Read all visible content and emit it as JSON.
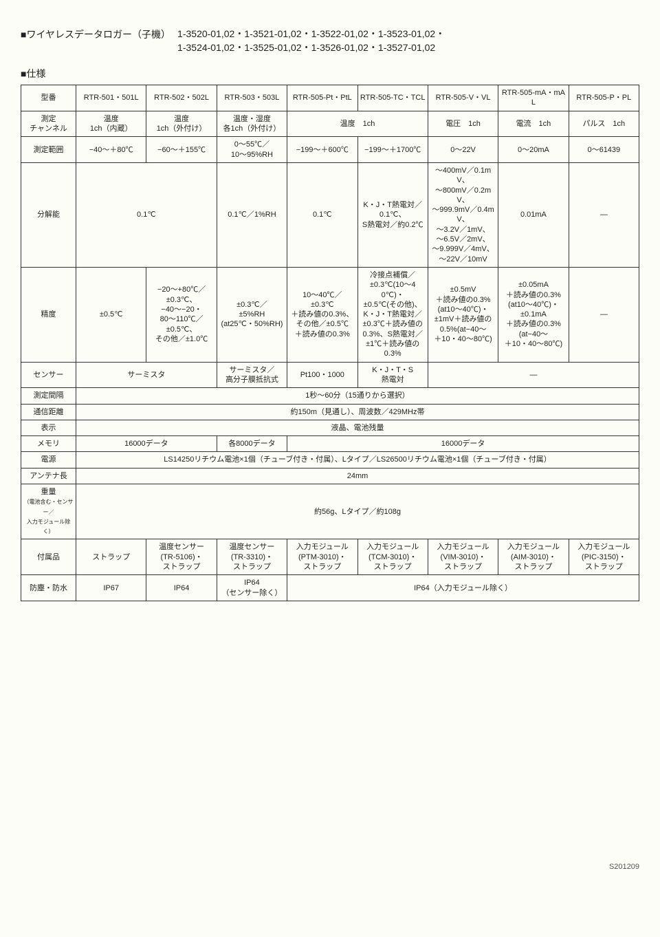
{
  "header": {
    "title": "■ワイヤレスデータロガー（子機）",
    "codes_line1": "1-3520-01,02・1-3521-01,02・1-3522-01,02・1-3523-01,02・",
    "codes_line2": "1-3524-01,02・1-3525-01,02・1-3526-01,02・1-3527-01,02"
  },
  "section_label": "■仕様",
  "columns": {
    "model": "型番",
    "c1": "RTR-501・501L",
    "c2": "RTR-502・502L",
    "c3": "RTR-503・503L",
    "c4": "RTR-505-Pt・PtL",
    "c5": "RTR-505-TC・TCL",
    "c6": "RTR-505-V・VL",
    "c7": "RTR-505-mA・mAL",
    "c8": "RTR-505-P・PL"
  },
  "rows": {
    "measure_channel": {
      "label": "測定\nチャンネル",
      "c1": "温度\n1ch（内蔵）",
      "c2": "温度\n1ch（外付け）",
      "c3": "温度・湿度\n各1ch（外付け）",
      "c45": "温度　1ch",
      "c6": "電圧　1ch",
      "c7": "電流　1ch",
      "c8": "パルス　1ch"
    },
    "range": {
      "label": "測定範囲",
      "c1": "−40～＋80℃",
      "c2": "−60～＋155℃",
      "c3": "0～55℃／\n10～95%RH",
      "c4": "−199～＋600℃",
      "c5": "−199～＋1700℃",
      "c6": "0～22V",
      "c7": "0～20mA",
      "c8": "0～61439"
    },
    "resolution": {
      "label": "分解能",
      "c12": "0.1℃",
      "c3": "0.1℃／1%RH",
      "c4": "0.1℃",
      "c5": "K・J・T熱電対／\n0.1℃、\nS熱電対／約0.2℃",
      "c6": "～400mV／0.1mV、\n～800mV／0.2mV、\n～999.9mV／0.4mV、\n～3.2V／1mV、\n～6.5V／2mV、\n～9.999V／4mV、\n～22V／10mV",
      "c7": "0.01mA",
      "c8": "—"
    },
    "accuracy": {
      "label": "精度",
      "c1": "±0.5℃",
      "c2": "−20～+80℃／\n±0.3℃、\n−40～−20・\n80～110℃／\n±0.5℃、\nその他／±1.0℃",
      "c3": "±0.3℃／\n±5%RH\n(at25℃・50%RH)",
      "c4": "10～40℃／\n±0.3℃\n＋読み値の0.3%、\nその他／±0.5℃\n＋読み値の0.3%",
      "c5": "冷接点補償／\n±0.3℃(10～40℃)・\n±0.5℃(その他)、\nK・J・T熱電対／\n±0.3℃＋読み値の\n0.3%、S熱電対／\n±1℃＋読み値の\n0.3%",
      "c6": "±0.5mV\n＋読み値の0.3%\n(at10～40℃)・\n±1mV＋読み値の\n0.5%(at−40～\n＋10・40～80℃)",
      "c7": "±0.05mA\n＋読み値の0.3%\n(at10～40℃)・\n±0.1mA\n＋読み値の0.3%\n(at−40～\n＋10・40～80℃)",
      "c8": "—"
    },
    "sensor": {
      "label": "センサー",
      "c12": "サーミスタ",
      "c3": "サーミスタ／\n高分子膜抵抗式",
      "c4": "Pt100・1000",
      "c5": "K・J・T・S\n熱電対",
      "c678": "—"
    },
    "interval": {
      "label": "測定間隔",
      "all": "1秒～60分（15通りから選択）"
    },
    "distance": {
      "label": "通信距離",
      "all": "約150m（見通し）、周波数／429MHz帯"
    },
    "display": {
      "label": "表示",
      "all": "液晶、電池残量"
    },
    "memory": {
      "label": "メモリ",
      "c12": "16000データ",
      "c3": "各8000データ",
      "c45678": "16000データ"
    },
    "power": {
      "label": "電源",
      "all": "LS14250リチウム電池×1個（チューブ付き・付属）、Lタイプ／LS26500リチウム電池×1個（チューブ付き・付属）"
    },
    "antenna": {
      "label": "アンテナ長",
      "all": "24mm"
    },
    "weight": {
      "label": "重量",
      "sublabel": "（電池含む・センサー／\n入力モジュール除く）",
      "all": "約56g、Lタイプ／約108g"
    },
    "accessories": {
      "label": "付属品",
      "c1": "ストラップ",
      "c2": "温度センサー\n(TR-5106)・\nストラップ",
      "c3": "温度センサー\n(TR-3310)・\nストラップ",
      "c4": "入力モジュール\n(PTM-3010)・\nストラップ",
      "c5": "入力モジュール\n(TCM-3010)・\nストラップ",
      "c6": "入力モジュール\n(VIM-3010)・\nストラップ",
      "c7": "入力モジュール\n(AIM-3010)・\nストラップ",
      "c8": "入力モジュール\n(PIC-3150)・\nストラップ"
    },
    "waterproof": {
      "label": "防塵・防水",
      "c1": "IP67",
      "c2": "IP64",
      "c3": "IP64\n（センサー除く）",
      "c45678": "IP64（入力モジュール除く）"
    }
  },
  "footer": "S201209",
  "styling": {
    "background_color": "#fdfdf7",
    "border_color": "#333333",
    "text_color": "#222222",
    "header_fontsize": 14,
    "cell_fontsize": 11,
    "small_fontsize": 9
  }
}
